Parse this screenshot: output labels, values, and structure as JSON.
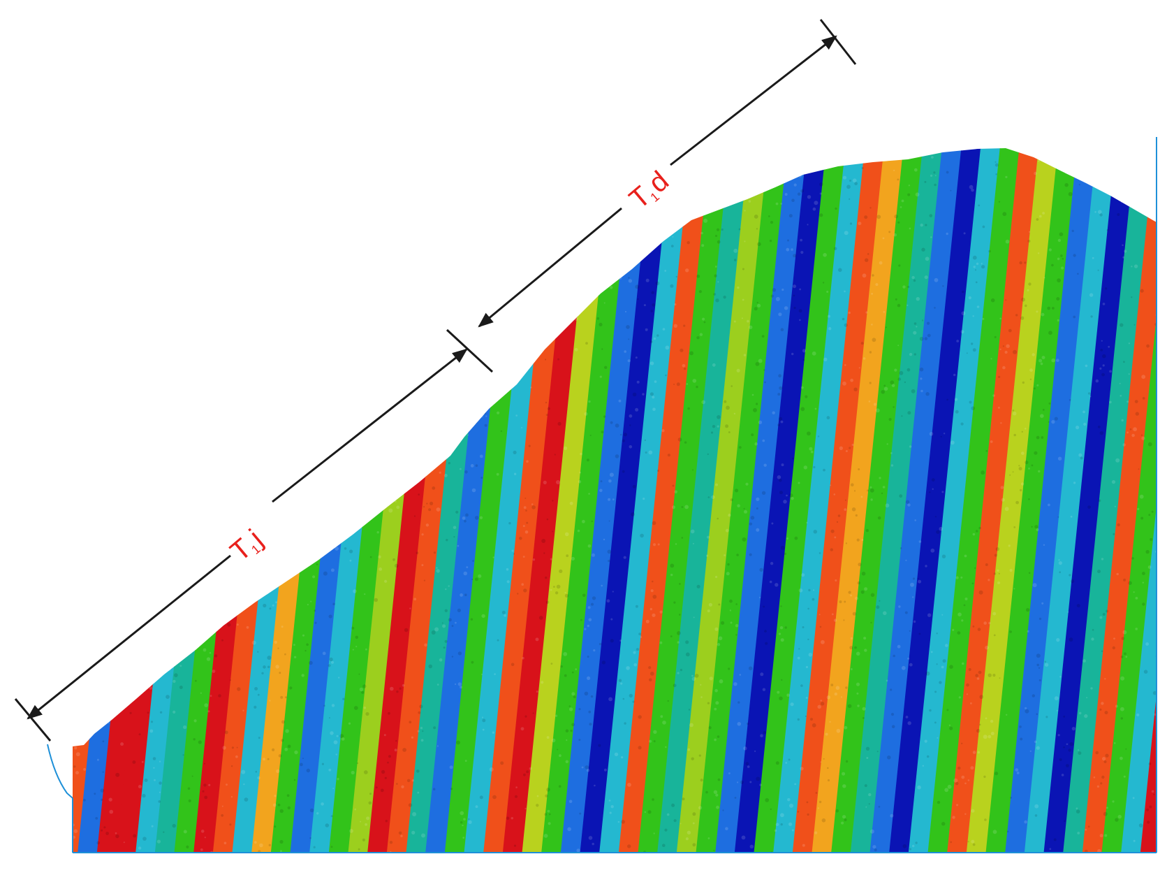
{
  "diagram": {
    "labels": {
      "t1j": {
        "main": "T",
        "sub": "1",
        "suffix": "j"
      },
      "t1d": {
        "main": "T",
        "sub": "1",
        "suffix": "d"
      }
    },
    "colors": {
      "arrow": "#1a1a1a",
      "label": "#e8201c",
      "outline": "#1e90d8",
      "band_palette": [
        "#d8121a",
        "#f0501a",
        "#f2a41e",
        "#b9d21e",
        "#32c31a",
        "#18b46a",
        "#24c0c8",
        "#20a0d8",
        "#1e6ee0",
        "#0a14b4"
      ]
    },
    "band_sequence": [
      "red",
      "green",
      "red",
      "orange",
      "blue",
      "red",
      "red",
      "cyan",
      "teal",
      "green",
      "red",
      "orange",
      "cyan",
      "yellow",
      "green",
      "blue",
      "cyan",
      "green",
      "lime",
      "red",
      "orange",
      "teal",
      "blue",
      "green",
      "cyan",
      "orange",
      "red",
      "yellowgreen",
      "green",
      "blue",
      "navy",
      "cyan",
      "orange",
      "green",
      "teal",
      "lime",
      "green",
      "blue",
      "navy",
      "green",
      "cyan",
      "orange",
      "yellow",
      "green",
      "teal",
      "blue",
      "navy",
      "cyan",
      "green",
      "orange",
      "yellowgreen",
      "green",
      "blue",
      "cyan",
      "navy",
      "teal",
      "orange",
      "green",
      "cyan",
      "red"
    ]
  }
}
